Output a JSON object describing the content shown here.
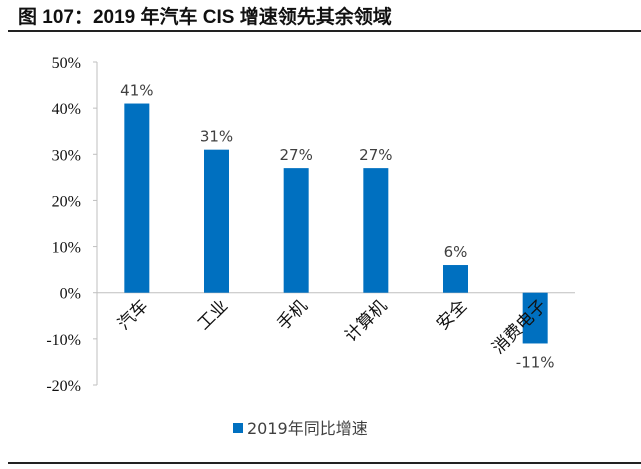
{
  "title": "图 107：2019 年汽车 CIS 增速领先其余领域",
  "chart_data": {
    "type": "bar",
    "categories": [
      "汽车",
      "工业",
      "手机",
      "计算机",
      "安全",
      "消费电子"
    ],
    "series": [
      {
        "name": "2019年同比增速",
        "values": [
          41,
          31,
          27,
          27,
          6,
          -11
        ]
      }
    ],
    "data_labels": [
      "41%",
      "31%",
      "27%",
      "27%",
      "6%",
      "-11%"
    ],
    "y_ticks": [
      "50%",
      "40%",
      "30%",
      "20%",
      "10%",
      "0%",
      "-10%",
      "-20%"
    ],
    "ylim": [
      -20,
      50
    ],
    "grid": false,
    "legend": "bottom",
    "colors": {
      "bar": "#0070C0"
    }
  }
}
